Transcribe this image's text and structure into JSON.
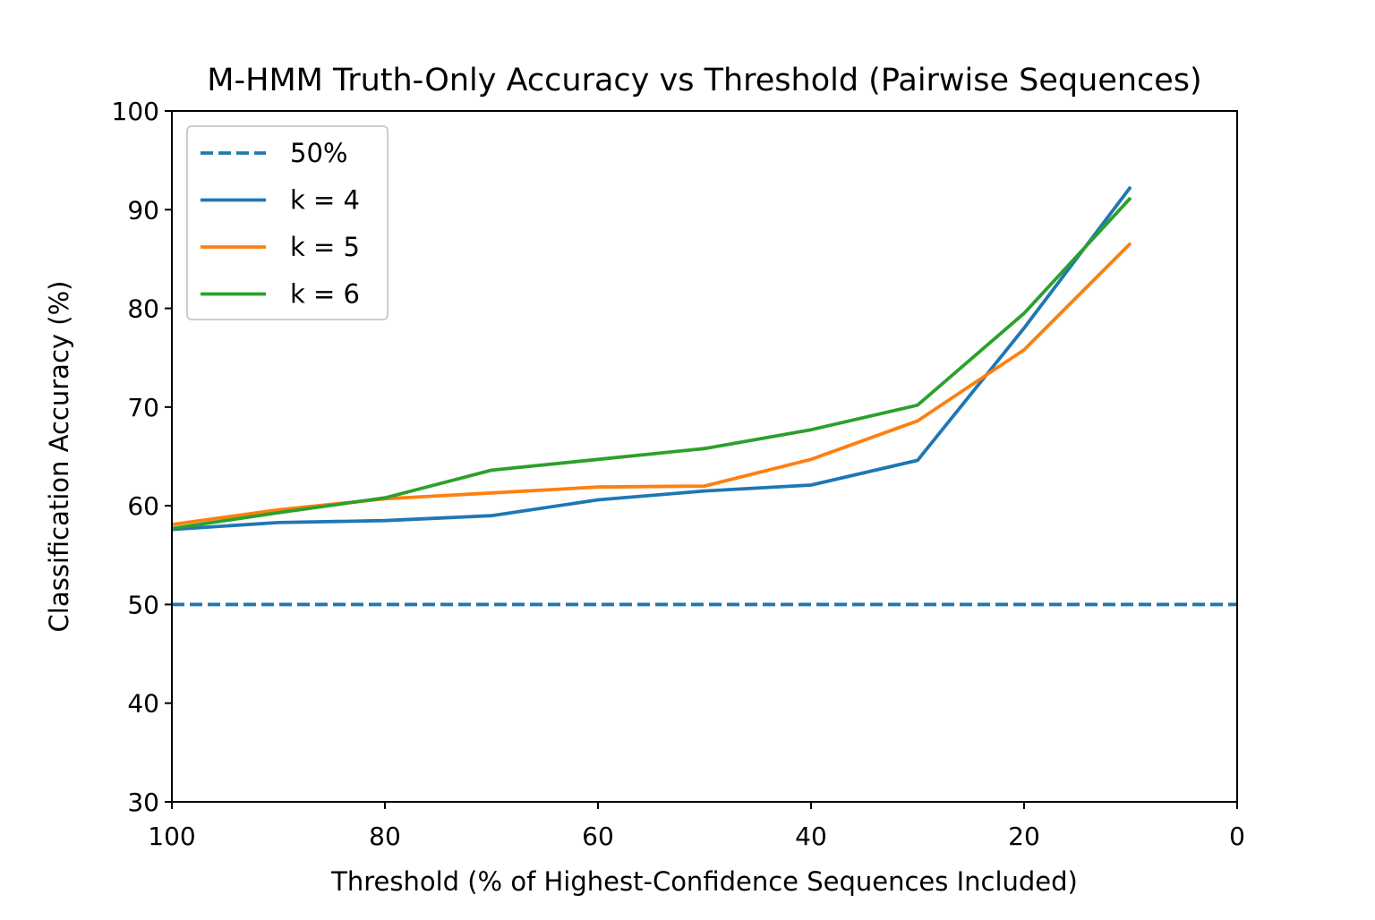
{
  "chart_data": {
    "type": "line",
    "title": "M-HMM Truth-Only Accuracy vs Threshold (Pairwise Sequences)",
    "xlabel": "Threshold (% of Highest-Confidence Sequences Included)",
    "ylabel": "Classification Accuracy (%)",
    "xlim": [
      100,
      0
    ],
    "ylim": [
      30,
      100
    ],
    "xticks": [
      100,
      80,
      60,
      40,
      20,
      0
    ],
    "yticks": [
      30,
      40,
      50,
      60,
      70,
      80,
      90,
      100
    ],
    "grid": false,
    "legend_position": "top-left",
    "x": [
      100,
      90,
      80,
      70,
      60,
      50,
      40,
      30,
      20,
      10
    ],
    "reference_lines": [
      {
        "name": "50%",
        "y": 50,
        "style": "dashed",
        "color": "#1f77b4"
      }
    ],
    "series": [
      {
        "name": "k = 4",
        "color": "#1f77b4",
        "values": [
          57.6,
          58.3,
          58.5,
          59.0,
          60.6,
          61.5,
          62.1,
          64.6,
          78.0,
          92.3
        ]
      },
      {
        "name": "k = 5",
        "color": "#ff7f0e",
        "values": [
          58.1,
          59.6,
          60.7,
          61.3,
          61.9,
          62.0,
          64.7,
          68.6,
          75.8,
          86.6
        ]
      },
      {
        "name": "k = 6",
        "color": "#2ca02c",
        "values": [
          57.7,
          59.3,
          60.8,
          63.6,
          64.7,
          65.8,
          67.7,
          70.2,
          79.5,
          91.2
        ]
      }
    ]
  }
}
